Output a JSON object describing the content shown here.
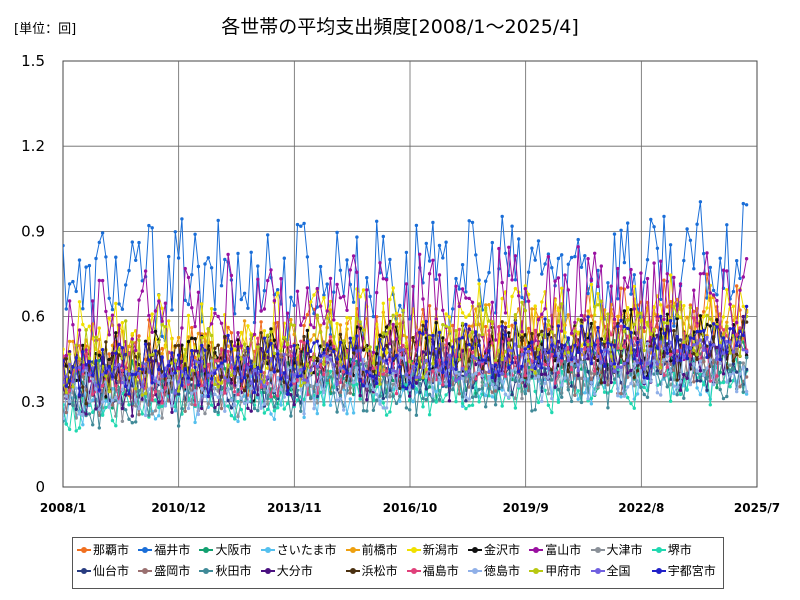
{
  "header": {
    "unit_label": "[単位：回]",
    "title": "各世帯の平均支出頻度[2008/1～2025/4]"
  },
  "chart_data": {
    "type": "line",
    "title": "各世帯の平均支出頻度[2008/1～2025/4]",
    "unit": "[単位：回]",
    "xlabel": "",
    "ylabel": "",
    "x_range": [
      "2008/1",
      "2025/7"
    ],
    "x_ticks": [
      "2008/1",
      "2010/12",
      "2013/11",
      "2016/10",
      "2019/9",
      "2022/8",
      "2025/7"
    ],
    "ylim": [
      0,
      1.5
    ],
    "y_ticks": [
      0,
      0.3,
      0.6,
      0.9,
      1.2,
      1.5
    ],
    "y_tick_labels": [
      "0",
      "0.3",
      "0.6",
      "0.9",
      "1.2",
      "1.5"
    ],
    "grid": true,
    "legend_position": "bottom",
    "series": [
      {
        "name": "那覇市",
        "color": "#f07020",
        "base_start": 0.42,
        "base_end": 0.6,
        "amp": 0.12
      },
      {
        "name": "福井市",
        "color": "#1a6ed8",
        "base_start": 0.72,
        "base_end": 0.78,
        "amp": 0.18
      },
      {
        "name": "大阪市",
        "color": "#12a070",
        "base_start": 0.36,
        "base_end": 0.45,
        "amp": 0.08
      },
      {
        "name": "さいたま市",
        "color": "#55c0ee",
        "base_start": 0.3,
        "base_end": 0.4,
        "amp": 0.08
      },
      {
        "name": "前橋市",
        "color": "#eea010",
        "base_start": 0.45,
        "base_end": 0.58,
        "amp": 0.1
      },
      {
        "name": "新潟市",
        "color": "#f0e000",
        "base_start": 0.5,
        "base_end": 0.62,
        "amp": 0.12
      },
      {
        "name": "金沢市",
        "color": "#101010",
        "base_start": 0.4,
        "base_end": 0.52,
        "amp": 0.1
      },
      {
        "name": "富山市",
        "color": "#9a10a0",
        "base_start": 0.55,
        "base_end": 0.7,
        "amp": 0.18
      },
      {
        "name": "大津市",
        "color": "#8a9098",
        "base_start": 0.32,
        "base_end": 0.45,
        "amp": 0.08
      },
      {
        "name": "堺市",
        "color": "#20d8b0",
        "base_start": 0.28,
        "base_end": 0.38,
        "amp": 0.07
      },
      {
        "name": "仙台市",
        "color": "#283c80",
        "base_start": 0.36,
        "base_end": 0.44,
        "amp": 0.08
      },
      {
        "name": "盛岡市",
        "color": "#9a7070",
        "base_start": 0.36,
        "base_end": 0.46,
        "amp": 0.09
      },
      {
        "name": "秋田市",
        "color": "#408a98",
        "base_start": 0.3,
        "base_end": 0.4,
        "amp": 0.08
      },
      {
        "name": "大分市",
        "color": "#4a1080",
        "base_start": 0.36,
        "base_end": 0.48,
        "amp": 0.1
      },
      {
        "name": "浜松市",
        "color": "#4a3010",
        "base_start": 0.4,
        "base_end": 0.5,
        "amp": 0.09
      },
      {
        "name": "福島市",
        "color": "#e0407a",
        "base_start": 0.38,
        "base_end": 0.5,
        "amp": 0.09
      },
      {
        "name": "徳島市",
        "color": "#90b0e8",
        "base_start": 0.32,
        "base_end": 0.42,
        "amp": 0.08
      },
      {
        "name": "甲府市",
        "color": "#b8c810",
        "base_start": 0.44,
        "base_end": 0.56,
        "amp": 0.1
      },
      {
        "name": "全国",
        "color": "#7060e0",
        "base_start": 0.38,
        "base_end": 0.48,
        "amp": 0.05
      },
      {
        "name": "宇都宮市",
        "color": "#2020c8",
        "base_start": 0.4,
        "base_end": 0.52,
        "amp": 0.09
      }
    ]
  }
}
